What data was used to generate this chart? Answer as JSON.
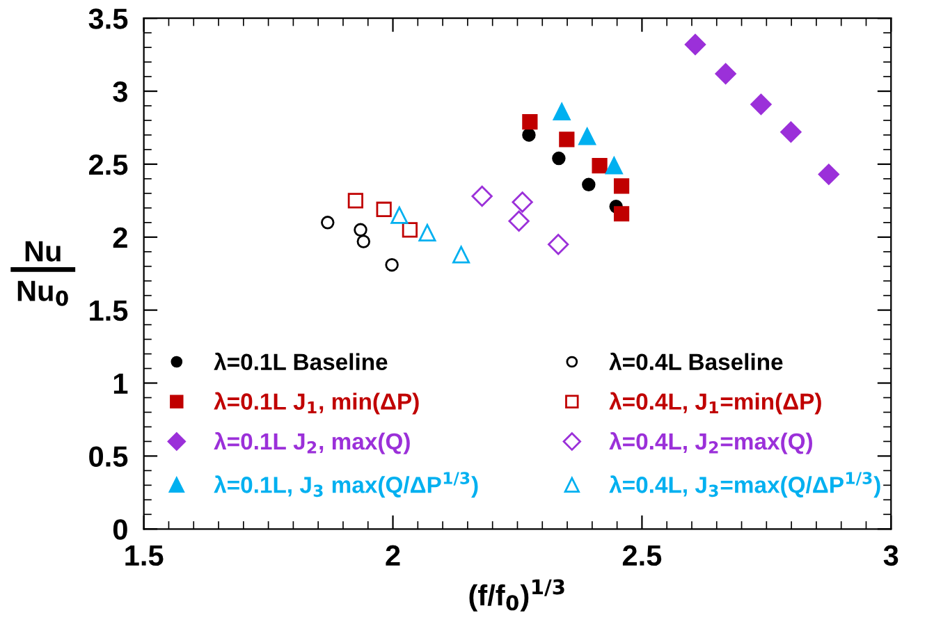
{
  "chart_data": {
    "type": "scatter",
    "xlabel": "(f/f$_{0}$)$^{1/3}$",
    "ylabel": "Nu\nNu$_{0}$",
    "xlim": [
      1.5,
      3
    ],
    "ylim": [
      0,
      3.5
    ],
    "xticks": [
      1.5,
      2,
      2.5,
      3
    ],
    "yticks": [
      0,
      0.5,
      1,
      1.5,
      2,
      2.5,
      3,
      3.5
    ],
    "grid": false,
    "legend": "bottom",
    "series": [
      {
        "name": "λ=0.1L Baseline",
        "color": "#000000",
        "marker": "circle",
        "x": [
          2.273,
          2.333,
          2.393,
          2.448
        ],
        "values": [
          2.7,
          2.54,
          2.36,
          2.21
        ]
      },
      {
        "name": "λ=0.4L Baseline",
        "color": "#000000",
        "marker": "circle",
        "x": [
          1.869,
          1.935,
          1.941,
          1.998
        ],
        "values": [
          2.1,
          2.05,
          1.97,
          1.81
        ]
      },
      {
        "name": "λ=0.1L J$_{1}$, min(ΔP)",
        "color": "#c00000",
        "marker": "square",
        "x": [
          2.275,
          2.349,
          2.415,
          2.459,
          2.459
        ],
        "values": [
          2.79,
          2.67,
          2.49,
          2.35,
          2.16
        ]
      },
      {
        "name": "λ=0.4L, J$_{1}$=min(ΔP)",
        "color": "#c00000",
        "marker": "square",
        "x": [
          1.925,
          1.982,
          2.034
        ],
        "values": [
          2.25,
          2.19,
          2.05
        ]
      },
      {
        "name": "λ=0.1L J$_{2}$, max(Q)",
        "color": "#9b30d9",
        "marker": "diamond",
        "x": [
          2.607,
          2.668,
          2.739,
          2.799,
          2.875
        ],
        "values": [
          3.32,
          3.12,
          2.91,
          2.72,
          2.43
        ]
      },
      {
        "name": "λ=0.4L, J$_{2}$=max(Q)",
        "color": "#9b30d9",
        "marker": "diamond",
        "x": [
          2.179,
          2.26,
          2.253,
          2.332
        ],
        "values": [
          2.28,
          2.24,
          2.11,
          1.95
        ]
      },
      {
        "name": "λ=0.1L, J$_{3}$ max(Q/ΔP$^{1/3}$)",
        "color": "#00b0f0",
        "marker": "triangle",
        "x": [
          2.339,
          2.39,
          2.444
        ],
        "values": [
          2.86,
          2.69,
          2.49
        ]
      },
      {
        "name": "λ=0.4L, J$_{3}$=max(Q/ΔP$^{1/3}$)",
        "color": "#00b0f0",
        "marker": "triangle",
        "x": [
          2.013,
          2.069,
          2.137
        ],
        "values": [
          2.15,
          2.03,
          1.88
        ]
      }
    ]
  }
}
